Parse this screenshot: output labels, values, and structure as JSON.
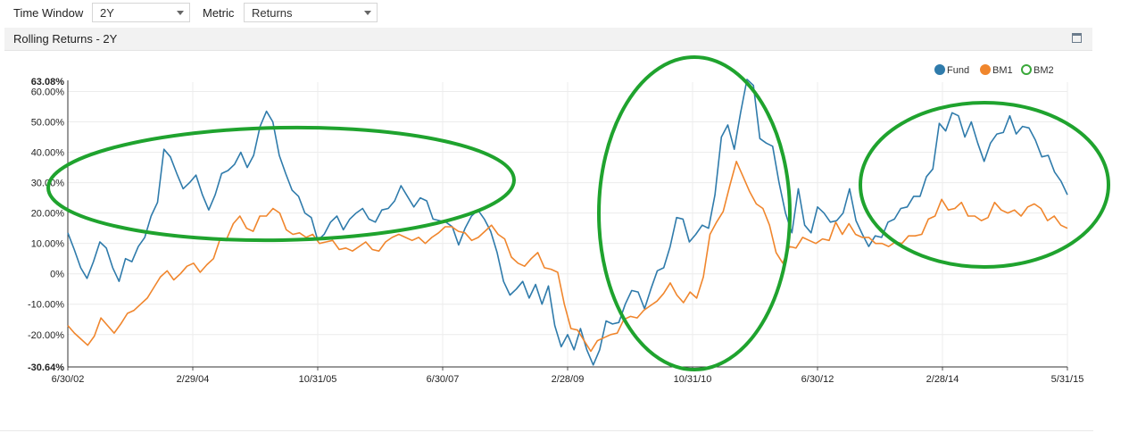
{
  "controls": {
    "time_window_label": "Time Window",
    "time_window_value": "2Y",
    "metric_label": "Metric",
    "metric_value": "Returns"
  },
  "panel": {
    "title": "Rolling Returns - 2Y"
  },
  "chart_data": {
    "type": "line",
    "yaxis": {
      "min": -30.64,
      "max": 63.08,
      "min_label": "-30.64%",
      "max_label": "63.08%",
      "ticks": [
        -20,
        -10,
        0,
        10,
        20,
        30,
        40,
        50,
        60
      ],
      "tick_labels": [
        "-20.00%",
        "-10.00%",
        "0%",
        "10.00%",
        "20.00%",
        "30.00%",
        "40.00%",
        "50.00%",
        "60.00%"
      ]
    },
    "xaxis": {
      "start": "6/30/02",
      "end": "5/31/15",
      "ticks": [
        "6/30/02",
        "2/29/04",
        "10/31/05",
        "6/30/07",
        "2/28/09",
        "10/31/10",
        "6/30/12",
        "2/28/14",
        "5/31/15"
      ]
    },
    "legend": {
      "placement": "top-right"
    },
    "grid": true,
    "series": [
      {
        "name": "Fund",
        "color": "#2f7bab",
        "values": [
          13.5,
          8,
          2,
          -1.5,
          4,
          10.5,
          8.5,
          2,
          -2.5,
          5,
          4,
          9,
          12,
          19,
          23.5,
          41,
          38.5,
          33,
          28,
          30,
          32.5,
          26,
          21,
          26,
          33,
          34,
          36,
          40,
          35,
          39,
          48.5,
          53.5,
          50,
          39,
          33,
          27.5,
          25.5,
          20,
          18.5,
          11,
          13,
          17,
          19,
          14.5,
          18,
          20,
          21.5,
          18,
          17,
          21,
          21.5,
          24,
          29,
          25.5,
          22,
          25,
          24,
          18,
          17.5,
          17,
          15.5,
          9.5,
          15,
          19,
          21,
          18,
          14,
          7,
          -2.5,
          -7,
          -5,
          -2.5,
          -8,
          -3.5,
          -10,
          -4,
          -17,
          -24,
          -20,
          -25,
          -18,
          -25,
          -30,
          -25,
          -15.5,
          -16.5,
          -16,
          -10,
          -5.5,
          -6,
          -11.5,
          -5,
          1,
          2,
          9,
          18.5,
          18,
          10.5,
          13,
          16,
          15,
          26,
          45,
          49,
          41,
          53,
          64,
          62,
          44.5,
          43,
          42,
          30,
          20,
          13.5,
          28,
          16,
          13.5,
          22,
          20,
          17,
          17.5,
          20,
          28,
          17.5,
          13,
          9,
          12.5,
          12,
          17,
          18,
          21.5,
          22,
          25.5,
          25.5,
          32,
          34.5,
          49.5,
          47,
          53,
          52,
          45,
          50,
          43,
          37,
          43,
          46,
          46.5,
          52,
          46,
          48.5,
          48,
          44,
          38.5,
          39,
          33.5,
          30.5,
          26
        ]
      },
      {
        "name": "BM1",
        "color": "#f0862d",
        "values": [
          -17,
          -19.5,
          -21.5,
          -23.5,
          -20.5,
          -14.5,
          -17,
          -19.5,
          -16.5,
          -13,
          -12,
          -10,
          -8,
          -4.5,
          -1,
          1,
          -2,
          0,
          2.5,
          3.5,
          0.5,
          3,
          5,
          11.5,
          11.5,
          16.5,
          19,
          15,
          14,
          19,
          19,
          21.5,
          20,
          14.5,
          13,
          13.5,
          12,
          13,
          10,
          10.5,
          11,
          8,
          8.5,
          7.5,
          9,
          10.5,
          8,
          7.5,
          10.5,
          12,
          13,
          12,
          11,
          12,
          10,
          12,
          13.5,
          15.5,
          15.5,
          14,
          13.5,
          11,
          12,
          14,
          16,
          13,
          11.5,
          5.5,
          3.5,
          2.5,
          5,
          7,
          2,
          1.5,
          0.5,
          -10,
          -18,
          -18.5,
          -22,
          -25.5,
          -22,
          -21,
          -20,
          -19.5,
          -15,
          -14,
          -14.5,
          -12,
          -10.5,
          -9,
          -6.5,
          -3,
          -7,
          -9.5,
          -6,
          -8,
          -1,
          13,
          17,
          20.5,
          29,
          37,
          32,
          27,
          23,
          21.5,
          16,
          7,
          3.5,
          9,
          8.5,
          12,
          11,
          10,
          11.5,
          11,
          17,
          13,
          16.5,
          13,
          12,
          12,
          10,
          10,
          9,
          10.5,
          10,
          12.5,
          12.5,
          13,
          18,
          19,
          24.5,
          21,
          21.5,
          23.5,
          19,
          19,
          17.5,
          18.5,
          23.5,
          21,
          20,
          21,
          19,
          22,
          23,
          21.5,
          17.5,
          19,
          16,
          15
        ]
      },
      {
        "name": "BM2",
        "color": "#3aa83a",
        "values": []
      }
    ]
  }
}
